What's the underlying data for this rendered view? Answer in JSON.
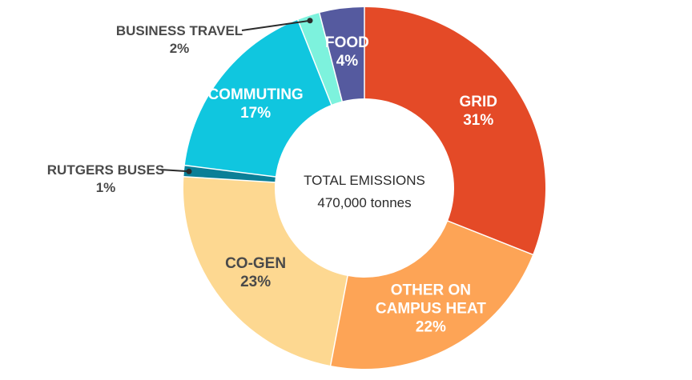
{
  "chart_data": {
    "type": "pie",
    "center_label": {
      "line1": "TOTAL EMISSIONS",
      "line2": "470,000 tonnes"
    },
    "slices": [
      {
        "name": "GRID",
        "value": 31,
        "percent_label": "31%",
        "color": "#e44a27",
        "label_lines": [
          "GRID"
        ],
        "label_color": "#ffffff",
        "placement": "inside"
      },
      {
        "name": "OTHER ON CAMPUS HEAT",
        "value": 22,
        "percent_label": "22%",
        "color": "#fda456",
        "label_lines": [
          "OTHER ON",
          "CAMPUS HEAT"
        ],
        "label_color": "#ffffff",
        "placement": "inside"
      },
      {
        "name": "CO-GEN",
        "value": 23,
        "percent_label": "23%",
        "color": "#fdd891",
        "label_lines": [
          "CO-GEN"
        ],
        "label_color": "#4a4a4a",
        "placement": "inside"
      },
      {
        "name": "RUTGERS BUSES",
        "value": 1,
        "percent_label": "1%",
        "color": "#0b7f97",
        "label_lines": [
          "RUTGERS BUSES"
        ],
        "label_color": "#4a4a4a",
        "placement": "outside-left"
      },
      {
        "name": "COMMUTING",
        "value": 17,
        "percent_label": "17%",
        "color": "#10c6df",
        "label_lines": [
          "COMMUTING"
        ],
        "label_color": "#ffffff",
        "placement": "inside"
      },
      {
        "name": "BUSINESS TRAVEL",
        "value": 2,
        "percent_label": "2%",
        "color": "#7df2dd",
        "label_lines": [
          "BUSINESS TRAVEL"
        ],
        "label_color": "#4a4a4a",
        "placement": "outside-left"
      },
      {
        "name": "FOOD",
        "value": 4,
        "percent_label": "4%",
        "color": "#555a9f",
        "label_lines": [
          "FOOD"
        ],
        "label_color": "#ffffff",
        "placement": "inside"
      }
    ]
  }
}
